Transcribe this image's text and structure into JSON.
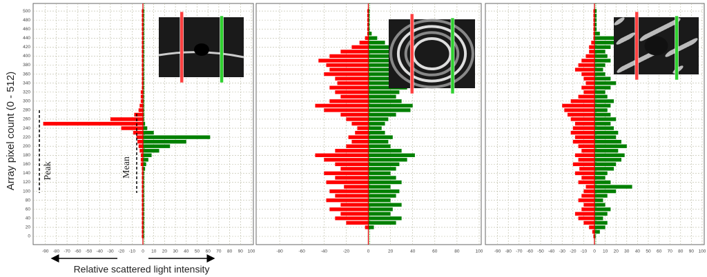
{
  "chart_data": [
    {
      "type": "bar",
      "orientation": "horizontal",
      "ylabel": "Array pixel count  (0 - 512)",
      "xlabel": "Relative scattered light intensity",
      "annotations": [
        "Peak",
        "Mean"
      ],
      "ytick_labels": true,
      "grid": true,
      "xlim": [
        -100,
        100
      ],
      "xticks": [
        -90,
        -80,
        -70,
        -60,
        -50,
        -40,
        -30,
        -20,
        -10,
        0,
        10,
        20,
        30,
        40,
        50,
        60,
        70,
        80,
        90,
        100
      ],
      "ylim": [
        0,
        510
      ],
      "yticks": [
        0,
        20,
        40,
        60,
        80,
        100,
        120,
        140,
        160,
        180,
        200,
        220,
        240,
        260,
        280,
        300,
        320,
        340,
        360,
        380,
        400,
        420,
        440,
        460,
        480,
        500
      ],
      "y": [
        0,
        10,
        20,
        30,
        40,
        50,
        60,
        70,
        80,
        90,
        100,
        110,
        120,
        130,
        140,
        150,
        160,
        170,
        180,
        190,
        200,
        210,
        220,
        230,
        240,
        250,
        260,
        270,
        280,
        290,
        300,
        310,
        320,
        330,
        340,
        350,
        360,
        370,
        380,
        390,
        400,
        410,
        420,
        430,
        440,
        450,
        460,
        470,
        480,
        490,
        500
      ],
      "series": [
        {
          "color": "#ff0000",
          "values": [
            -1,
            -1,
            -1,
            -1,
            -1,
            -1,
            -1,
            -1,
            -1,
            -1,
            -1,
            -1,
            -1,
            -1,
            -1,
            -1,
            -2,
            -2,
            -2,
            -3,
            -4,
            -5,
            -6,
            -9,
            -20,
            -92,
            -30,
            -8,
            -4,
            -3,
            -2,
            -2,
            -2,
            -1,
            -1,
            -1,
            -1,
            -1,
            -1,
            -1,
            -1,
            -1,
            -1,
            -1,
            -1,
            -1,
            -1,
            -1,
            -1,
            -1,
            -1
          ]
        },
        {
          "color": "#008000",
          "values": [
            1,
            1,
            1,
            1,
            1,
            1,
            1,
            1,
            1,
            1,
            1,
            1,
            1,
            1,
            1,
            2,
            3,
            5,
            8,
            15,
            25,
            40,
            62,
            10,
            4,
            2,
            1,
            1,
            1,
            1,
            1,
            1,
            1,
            1,
            1,
            1,
            1,
            1,
            1,
            1,
            1,
            1,
            1,
            1,
            1,
            1,
            1,
            1,
            1,
            1,
            1
          ]
        }
      ]
    },
    {
      "type": "bar",
      "orientation": "horizontal",
      "ytick_labels": false,
      "grid": true,
      "xlim": [
        -100,
        100
      ],
      "xticks": [
        -80,
        -60,
        -40,
        -20,
        0,
        20,
        40,
        60,
        80,
        100
      ],
      "ylim": [
        0,
        510
      ],
      "yticks": [
        0,
        20,
        40,
        60,
        80,
        100,
        120,
        140,
        160,
        180,
        200,
        220,
        240,
        260,
        280,
        300,
        320,
        340,
        360,
        380,
        400,
        420,
        440,
        460,
        480,
        500
      ],
      "y": [
        0,
        10,
        20,
        30,
        40,
        50,
        60,
        70,
        80,
        90,
        100,
        110,
        120,
        130,
        140,
        150,
        160,
        170,
        180,
        190,
        200,
        210,
        220,
        230,
        240,
        250,
        260,
        270,
        280,
        290,
        300,
        310,
        320,
        330,
        340,
        350,
        360,
        370,
        380,
        390,
        400,
        410,
        420,
        430,
        440,
        450,
        460,
        470,
        480,
        490,
        500
      ],
      "series": [
        {
          "color": "#ff0000",
          "values": [
            0,
            0,
            -3,
            -20,
            -30,
            -25,
            -35,
            -25,
            -38,
            -30,
            -35,
            -22,
            -38,
            -30,
            -40,
            -25,
            -30,
            -40,
            -48,
            -30,
            -20,
            -15,
            -18,
            -12,
            -10,
            -15,
            -20,
            -25,
            -40,
            -48,
            -35,
            -25,
            -30,
            -35,
            -28,
            -30,
            -40,
            -35,
            -38,
            -45,
            -35,
            -25,
            -15,
            -8,
            -3,
            -1,
            -1,
            -1,
            -1,
            -1,
            -1
          ]
        },
        {
          "color": "#008000",
          "values": [
            0,
            0,
            5,
            25,
            30,
            20,
            22,
            30,
            20,
            25,
            28,
            20,
            30,
            25,
            20,
            25,
            28,
            35,
            42,
            30,
            20,
            18,
            22,
            15,
            12,
            15,
            18,
            25,
            38,
            40,
            30,
            25,
            28,
            35,
            30,
            28,
            30,
            35,
            30,
            28,
            35,
            30,
            22,
            15,
            8,
            3,
            1,
            1,
            1,
            1,
            1
          ]
        }
      ]
    },
    {
      "type": "bar",
      "orientation": "horizontal",
      "ytick_labels": false,
      "grid": true,
      "xlim": [
        -100,
        100
      ],
      "xticks": [
        -90,
        -80,
        -70,
        -60,
        -50,
        -40,
        -30,
        -20,
        -10,
        0,
        10,
        20,
        30,
        40,
        50,
        60,
        70,
        80,
        90,
        100
      ],
      "ylim": [
        0,
        510
      ],
      "yticks": [
        0,
        20,
        40,
        60,
        80,
        100,
        120,
        140,
        160,
        180,
        200,
        220,
        240,
        260,
        280,
        300,
        320,
        340,
        360,
        380,
        400,
        420,
        440,
        460,
        480,
        500
      ],
      "y": [
        0,
        10,
        20,
        30,
        40,
        50,
        60,
        70,
        80,
        90,
        100,
        110,
        120,
        130,
        140,
        150,
        160,
        170,
        180,
        190,
        200,
        210,
        220,
        230,
        240,
        250,
        260,
        270,
        280,
        290,
        300,
        310,
        320,
        330,
        340,
        350,
        360,
        370,
        380,
        390,
        400,
        410,
        420,
        430,
        440,
        450,
        460,
        470,
        480,
        490,
        500
      ],
      "series": [
        {
          "color": "#ff0000",
          "values": [
            -1,
            -2,
            -5,
            -10,
            -15,
            -18,
            -12,
            -10,
            -15,
            -12,
            -10,
            -8,
            -15,
            -12,
            -18,
            -14,
            -20,
            -15,
            -18,
            -12,
            -15,
            -20,
            -18,
            -22,
            -20,
            -18,
            -22,
            -25,
            -28,
            -30,
            -22,
            -15,
            -10,
            -12,
            -8,
            -10,
            -12,
            -18,
            -15,
            -12,
            -8,
            -5,
            -5,
            -3,
            -1,
            -1,
            -1,
            -1,
            -1,
            -1,
            -1
          ]
        },
        {
          "color": "#008000",
          "values": [
            1,
            5,
            10,
            12,
            8,
            12,
            15,
            10,
            8,
            12,
            20,
            35,
            15,
            10,
            12,
            18,
            20,
            25,
            28,
            22,
            30,
            25,
            20,
            22,
            18,
            15,
            20,
            15,
            12,
            15,
            18,
            12,
            10,
            15,
            20,
            15,
            10,
            8,
            10,
            15,
            12,
            10,
            15,
            20,
            18,
            5,
            2,
            2,
            2,
            2,
            2
          ]
        }
      ]
    }
  ]
}
